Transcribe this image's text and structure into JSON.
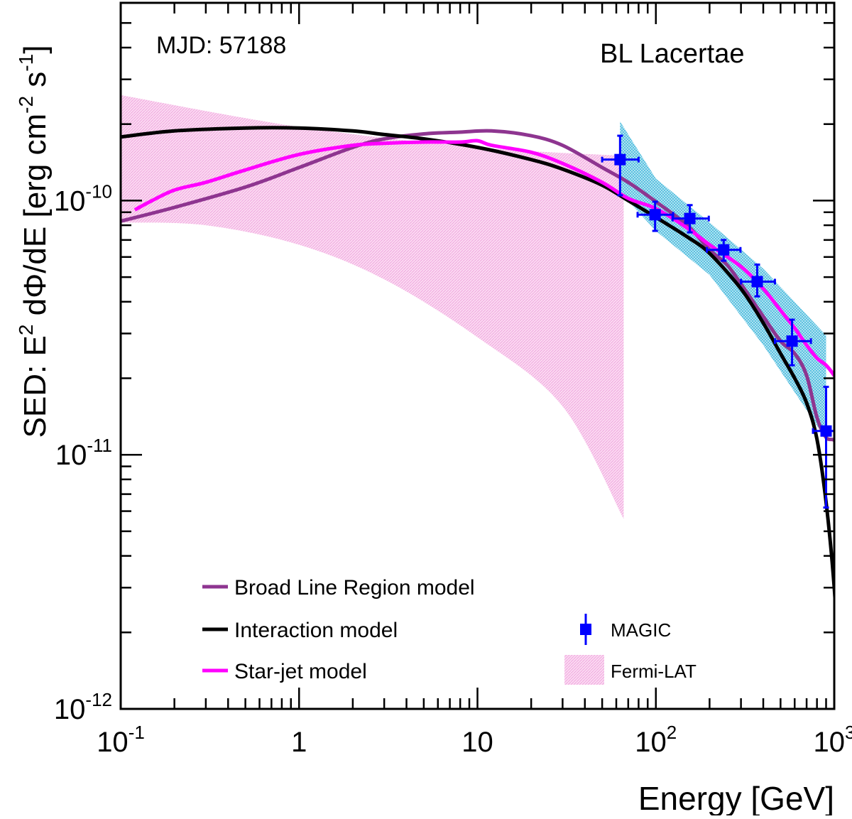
{
  "chart_data": {
    "type": "line",
    "log_x": true,
    "log_y": true,
    "xlim": [
      0.1,
      1000
    ],
    "ylim": [
      1e-12,
      6e-10
    ],
    "xlabel": "Energy [GeV]",
    "ylabel": {
      "parts": [
        {
          "t": "SED: E"
        },
        {
          "t": "2",
          "sup": true
        },
        {
          "t": " dΦ/dE [erg cm"
        },
        {
          "t": "-2",
          "sup": true
        },
        {
          "t": " s"
        },
        {
          "t": "-1",
          "sup": true
        },
        {
          "t": "]"
        }
      ]
    },
    "x_ticks": [
      {
        "value": 0.1,
        "base": "10",
        "exp": "-1"
      },
      {
        "value": 1,
        "base": "1",
        "exp": ""
      },
      {
        "value": 10,
        "base": "10",
        "exp": ""
      },
      {
        "value": 100,
        "base": "10",
        "exp": "2"
      },
      {
        "value": 1000,
        "base": "10",
        "exp": "3"
      }
    ],
    "y_ticks": [
      {
        "value": 1e-12,
        "base": "10",
        "exp": "-12"
      },
      {
        "value": 1e-11,
        "base": "10",
        "exp": "-11"
      },
      {
        "value": 1e-10,
        "base": "10",
        "exp": "-10"
      }
    ],
    "annotations": {
      "mjd": "MJD: 57188",
      "source": "BL Lacertae"
    },
    "series": [
      {
        "name": "Broad Line Region model",
        "color": "#8e3590",
        "points": [
          [
            0.1,
            8.3e-11
          ],
          [
            0.2,
            9.4e-11
          ],
          [
            0.5,
            1.13e-10
          ],
          [
            1,
            1.35e-10
          ],
          [
            2,
            1.62e-10
          ],
          [
            3,
            1.75e-10
          ],
          [
            5,
            1.83e-10
          ],
          [
            8,
            1.86e-10
          ],
          [
            12,
            1.88e-10
          ],
          [
            20,
            1.8e-10
          ],
          [
            30,
            1.65e-10
          ],
          [
            50,
            1.35e-10
          ],
          [
            70,
            1.18e-10
          ],
          [
            100,
            9.9e-11
          ],
          [
            150,
            8e-11
          ],
          [
            200,
            6.4e-11
          ],
          [
            250,
            5.6e-11
          ],
          [
            300,
            4.7e-11
          ],
          [
            400,
            3.5e-11
          ],
          [
            500,
            2.8e-11
          ],
          [
            600,
            2.5e-11
          ],
          [
            700,
            2.05e-11
          ],
          [
            800,
            1.4e-11
          ],
          [
            900,
            1.17e-11
          ],
          [
            1000,
            1.14e-11
          ],
          [
            1100,
            1.04e-11
          ]
        ]
      },
      {
        "name": "Interaction model",
        "color": "#000000",
        "points": [
          [
            0.1,
            1.78e-10
          ],
          [
            0.2,
            1.88e-10
          ],
          [
            0.5,
            1.93e-10
          ],
          [
            1,
            1.93e-10
          ],
          [
            2,
            1.88e-10
          ],
          [
            3,
            1.82e-10
          ],
          [
            5,
            1.75e-10
          ],
          [
            10,
            1.62e-10
          ],
          [
            20,
            1.45e-10
          ],
          [
            30,
            1.33e-10
          ],
          [
            50,
            1.15e-10
          ],
          [
            70,
            1e-10
          ],
          [
            100,
            8.6e-11
          ],
          [
            150,
            7.2e-11
          ],
          [
            200,
            6.2e-11
          ],
          [
            300,
            4.5e-11
          ],
          [
            400,
            3.3e-11
          ],
          [
            500,
            2.5e-11
          ],
          [
            600,
            2e-11
          ],
          [
            700,
            1.6e-11
          ],
          [
            800,
            1.15e-11
          ],
          [
            900,
            6.5e-12
          ],
          [
            1000,
            3e-12
          ],
          [
            1050,
            1.6e-12
          ],
          [
            1100,
            1.05e-12
          ]
        ]
      },
      {
        "name": "Star-jet model",
        "color": "#ff00ff",
        "points": [
          [
            0.12,
            9.2e-11
          ],
          [
            0.15,
            1e-10
          ],
          [
            0.2,
            1.1e-10
          ],
          [
            0.3,
            1.18e-10
          ],
          [
            0.5,
            1.32e-10
          ],
          [
            1,
            1.52e-10
          ],
          [
            2,
            1.65e-10
          ],
          [
            3,
            1.68e-10
          ],
          [
            5,
            1.7e-10
          ],
          [
            8,
            1.7e-10
          ],
          [
            10,
            1.72e-10
          ],
          [
            12,
            1.65e-10
          ],
          [
            20,
            1.55e-10
          ],
          [
            30,
            1.4e-10
          ],
          [
            50,
            1.18e-10
          ],
          [
            70,
            1.02e-10
          ],
          [
            100,
            9.3e-11
          ],
          [
            150,
            7.8e-11
          ],
          [
            200,
            6.7e-11
          ],
          [
            300,
            5.5e-11
          ],
          [
            400,
            4.5e-11
          ],
          [
            500,
            3.7e-11
          ],
          [
            600,
            3.15e-11
          ],
          [
            700,
            2.7e-11
          ],
          [
            800,
            2.4e-11
          ],
          [
            900,
            2.25e-11
          ],
          [
            1000,
            2.05e-11
          ],
          [
            1100,
            1.85e-11
          ]
        ]
      }
    ],
    "magic": {
      "name": "MAGIC",
      "color": "#0000ff",
      "points": [
        {
          "x": 63,
          "y": 1.45e-10,
          "xlo": 50,
          "xhi": 80,
          "ylo": 1.05e-10,
          "yhi": 1.8e-10
        },
        {
          "x": 99,
          "y": 8.8e-11,
          "xlo": 79,
          "xhi": 125,
          "ylo": 7.6e-11,
          "yhi": 9.9e-11
        },
        {
          "x": 155,
          "y": 8.5e-11,
          "xlo": 124,
          "xhi": 198,
          "ylo": 7.5e-11,
          "yhi": 9.6e-11
        },
        {
          "x": 240,
          "y": 6.4e-11,
          "xlo": 193,
          "xhi": 298,
          "ylo": 5.8e-11,
          "yhi": 7e-11
        },
        {
          "x": 370,
          "y": 4.8e-11,
          "xlo": 300,
          "xhi": 465,
          "ylo": 4.2e-11,
          "yhi": 5.6e-11
        },
        {
          "x": 580,
          "y": 2.8e-11,
          "xlo": 465,
          "xhi": 740,
          "ylo": 2.25e-11,
          "yhi": 3.4e-11
        },
        {
          "x": 900,
          "y": 1.24e-11,
          "xlo": 760,
          "xhi": 1100,
          "ylo": 6.2e-12,
          "yhi": 1.85e-11
        }
      ]
    },
    "magic_band": {
      "color": "#2ab7dd",
      "x_range": [
        63,
        900
      ],
      "upper": [
        [
          63,
          2.05e-10
        ],
        [
          100,
          1.22e-10
        ],
        [
          200,
          8.2e-11
        ],
        [
          400,
          5.4e-11
        ],
        [
          900,
          2.95e-11
        ]
      ],
      "lower": [
        [
          63,
          1.08e-10
        ],
        [
          100,
          7.6e-11
        ],
        [
          200,
          5.1e-11
        ],
        [
          400,
          2.7e-11
        ],
        [
          900,
          1.15e-11
        ]
      ]
    },
    "fermi": {
      "name": "Fermi-LAT",
      "color": "#f7bde9",
      "upper": [
        [
          0.1,
          2.6e-10
        ],
        [
          1,
          1.95e-10
        ],
        [
          10,
          1.62e-10
        ],
        [
          66,
          1.5e-10
        ]
      ],
      "lower": [
        [
          0.1,
          8.2e-11
        ],
        [
          0.3,
          8e-11
        ],
        [
          1,
          6.7e-11
        ],
        [
          3,
          4.9e-11
        ],
        [
          10,
          2.9e-11
        ],
        [
          30,
          1.55e-11
        ],
        [
          66,
          5.6e-12
        ]
      ]
    },
    "legend": [
      {
        "label": "Broad Line Region model",
        "kind": "line",
        "series": 0
      },
      {
        "label": "Interaction model",
        "kind": "line",
        "series": 1
      },
      {
        "label": "Star-jet model",
        "kind": "line",
        "series": 2
      },
      {
        "label": "MAGIC",
        "kind": "marker"
      },
      {
        "label": "Fermi-LAT",
        "kind": "band"
      }
    ]
  }
}
